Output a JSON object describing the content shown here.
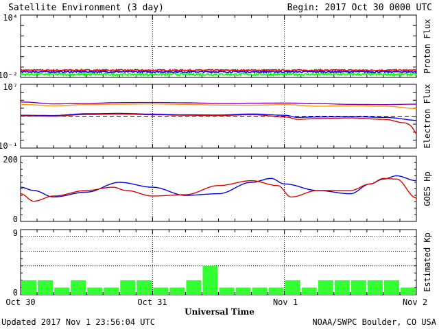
{
  "header": {
    "title": "Satellite Environment (3 day)",
    "begin": "Begin:  2017 Oct 30 0000 UTC"
  },
  "footer": {
    "updated": "Updated 2017 Nov  1 23:56:04 UTC",
    "credit": "NOAA/SWPC Boulder, CO USA"
  },
  "chart_data": [
    {
      "type": "line",
      "title": "",
      "ylabel": "Proton Flux",
      "yscale": "log",
      "ylim": [
        0.01,
        10000
      ],
      "ytick_labels": {
        "top": "10⁴",
        "bottom": "10⁻²"
      },
      "threshold": 10,
      "threshold_style": "dashed",
      "x_days": [
        0,
        3
      ],
      "series": [
        {
          "color": "#ff0000",
          "level": 0.05,
          "noise": 0.008
        },
        {
          "color": "#0000ff",
          "level": 0.035,
          "noise": 0.006
        },
        {
          "color": "#00ff00",
          "level": 0.02,
          "noise": 0.005
        }
      ]
    },
    {
      "type": "line",
      "ylabel": "Electron Flux",
      "yscale": "log",
      "ylim": [
        0.1,
        10000000
      ],
      "ytick_labels": {
        "top": "10⁷",
        "bottom": "10⁻¹"
      },
      "threshold": 1000,
      "threshold_style": "dashed",
      "series": [
        {
          "color": "#7f00aa",
          "x": [
            0,
            0.25,
            0.5,
            0.75,
            1.0,
            1.25,
            1.5,
            1.75,
            2.0,
            2.25,
            2.5,
            2.75,
            3.0
          ],
          "y": [
            60000,
            35000,
            40000,
            50000,
            52000,
            48000,
            40000,
            42000,
            45000,
            38000,
            30000,
            28000,
            32000
          ]
        },
        {
          "color": "#ff9900",
          "x": [
            0,
            0.25,
            0.5,
            0.75,
            1.0,
            1.25,
            1.5,
            1.75,
            2.0,
            2.25,
            2.5,
            2.75,
            3.0
          ],
          "y": [
            30000,
            20000,
            28000,
            32000,
            34000,
            30000,
            25000,
            24000,
            28000,
            18000,
            20000,
            18000,
            9000
          ]
        },
        {
          "color": "#0000ff",
          "x": [
            0,
            0.25,
            0.5,
            0.75,
            1.0,
            1.25,
            1.5,
            1.75,
            2.0,
            2.1,
            2.25,
            2.5,
            2.75,
            3.0
          ],
          "y": [
            1300,
            1200,
            2000,
            2200,
            1800,
            1500,
            1400,
            1900,
            1300,
            700,
            800,
            900,
            700,
            300
          ]
        },
        {
          "color": "#dd0000",
          "x": [
            0,
            0.25,
            0.5,
            0.75,
            1.0,
            1.25,
            1.5,
            1.75,
            2.0,
            2.1,
            2.25,
            2.5,
            2.75,
            2.9,
            3.0
          ],
          "y": [
            1100,
            1000,
            1600,
            1900,
            1500,
            1300,
            1200,
            1500,
            800,
            400,
            500,
            600,
            400,
            150,
            6
          ]
        }
      ]
    },
    {
      "type": "line",
      "ylabel": "GOES Hp",
      "ylim": [
        0,
        200
      ],
      "yticks": [
        0,
        200
      ],
      "series": [
        {
          "color": "#0000dd",
          "x": [
            0,
            0.1,
            0.25,
            0.5,
            0.75,
            1.0,
            1.25,
            1.5,
            1.75,
            1.9,
            2.0,
            2.25,
            2.5,
            2.65,
            2.75,
            2.85,
            3.0
          ],
          "y": [
            105,
            95,
            75,
            90,
            120,
            105,
            80,
            85,
            120,
            132,
            115,
            95,
            85,
            115,
            130,
            140,
            125
          ]
        },
        {
          "color": "#dd0000",
          "x": [
            0,
            0.1,
            0.25,
            0.5,
            0.7,
            0.8,
            1.0,
            1.25,
            1.5,
            1.75,
            1.95,
            2.05,
            2.25,
            2.5,
            2.65,
            2.75,
            2.85,
            3.0
          ],
          "y": [
            85,
            62,
            78,
            95,
            105,
            95,
            78,
            82,
            110,
            125,
            110,
            75,
            95,
            95,
            115,
            132,
            130,
            72
          ]
        }
      ]
    },
    {
      "type": "bar",
      "ylabel": "Estimated Kp",
      "ylim": [
        0,
        9
      ],
      "yticks": [
        0,
        9
      ],
      "gridlines": [
        4,
        6,
        8
      ],
      "bar_color": "#33ff33",
      "values": [
        2,
        2,
        1,
        2,
        1,
        1,
        2,
        2,
        1,
        1,
        2,
        4,
        1,
        1,
        1,
        1,
        2,
        1,
        2,
        2,
        2,
        2,
        2,
        1
      ]
    }
  ],
  "xaxis": {
    "label": "Universal Time",
    "ticks": [
      "Oct 30",
      "Oct 31",
      "Nov 1",
      "Nov 2"
    ]
  }
}
